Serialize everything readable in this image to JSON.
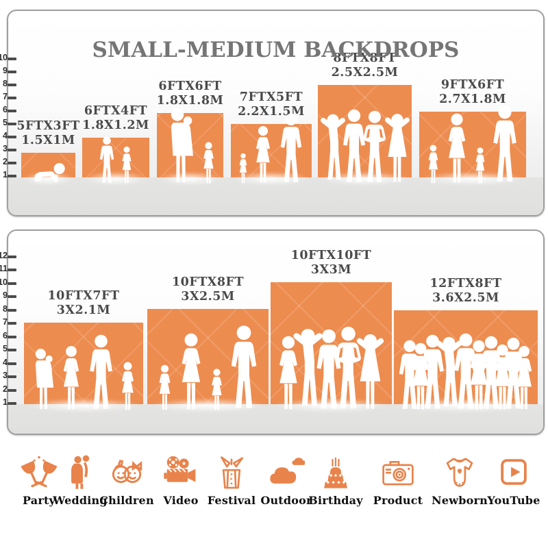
{
  "title": "SMALL-MEDIUM BACKDROPS",
  "colors": {
    "backdrop_orange": "#ED8C4F",
    "icon_orange": "#E8834B",
    "label_gray": "#4a4a4a",
    "title_gray": "#757575",
    "ground_gray": "#e2e2e0"
  },
  "panels": [
    {
      "name": "small-medium-backdrops-top-panel",
      "ruler_numbers": [
        "10",
        "9",
        "8",
        "7",
        "6",
        "5",
        "4",
        "3",
        "2",
        "1"
      ],
      "backdrops": [
        {
          "size_ft": "5FTX3FT",
          "size_m": "1.5X1M",
          "figures": [
            "crawling-baby"
          ]
        },
        {
          "size_ft": "6FTX4FT",
          "size_m": "1.8X1.2M",
          "figures": [
            "boy",
            "girl"
          ]
        },
        {
          "size_ft": "6FTX6FT",
          "size_m": "1.8X1.8M",
          "figures": [
            "woman-holding-baby",
            "girl"
          ]
        },
        {
          "size_ft": "7FTX5FT",
          "size_m": "2.2X1.5M",
          "figures": [
            "toddler",
            "woman",
            "man"
          ]
        },
        {
          "size_ft": "8FTX8FT",
          "size_m": "2.5X2.5M",
          "figures": [
            "man-arms-up",
            "man",
            "man-hands-on-hips",
            "woman-arms-up"
          ]
        },
        {
          "size_ft": "9FTX6FT",
          "size_m": "2.7X1.8M",
          "figures": [
            "girl",
            "woman",
            "girl",
            "man"
          ]
        }
      ]
    },
    {
      "name": "small-medium-backdrops-bottom-panel",
      "ruler_numbers": [
        "12",
        "11",
        "10",
        "9",
        "8",
        "7",
        "6",
        "5",
        "4",
        "3",
        "2",
        "1"
      ],
      "backdrops": [
        {
          "size_ft": "10FTX7FT",
          "size_m": "3X2.1M",
          "figures": [
            "woman-holding-baby",
            "woman",
            "man",
            "girl"
          ]
        },
        {
          "size_ft": "10FTX8FT",
          "size_m": "3X2.5M",
          "figures": [
            "girl",
            "woman",
            "girl",
            "man"
          ]
        },
        {
          "size_ft": "10FTX10FT",
          "size_m": "3X3M",
          "figures": [
            "woman",
            "man-arms-up",
            "man",
            "man-hands-on-hips",
            "woman-arms-up"
          ]
        },
        {
          "size_ft": "12FTX8FT",
          "size_m": "3.6X2.5M",
          "figures": [
            "man",
            "woman",
            "man",
            "man-arms-up",
            "man",
            "woman",
            "man",
            "woman",
            "man",
            "woman"
          ]
        }
      ]
    }
  ],
  "categories": [
    {
      "icon": "party-icon",
      "label": "Party"
    },
    {
      "icon": "wedding-icon",
      "label": "Wedding"
    },
    {
      "icon": "children-icon",
      "label": "Children"
    },
    {
      "icon": "video-icon",
      "label": "Video"
    },
    {
      "icon": "festival-icon",
      "label": "Festival"
    },
    {
      "icon": "outdoor-icon",
      "label": "Outdoor"
    },
    {
      "icon": "birthday-icon",
      "label": "Birthday"
    },
    {
      "icon": "product-icon",
      "label": "Product"
    },
    {
      "icon": "newborn-icon",
      "label": "Newborn"
    },
    {
      "icon": "youtube-icon",
      "label": "YouTube"
    }
  ]
}
